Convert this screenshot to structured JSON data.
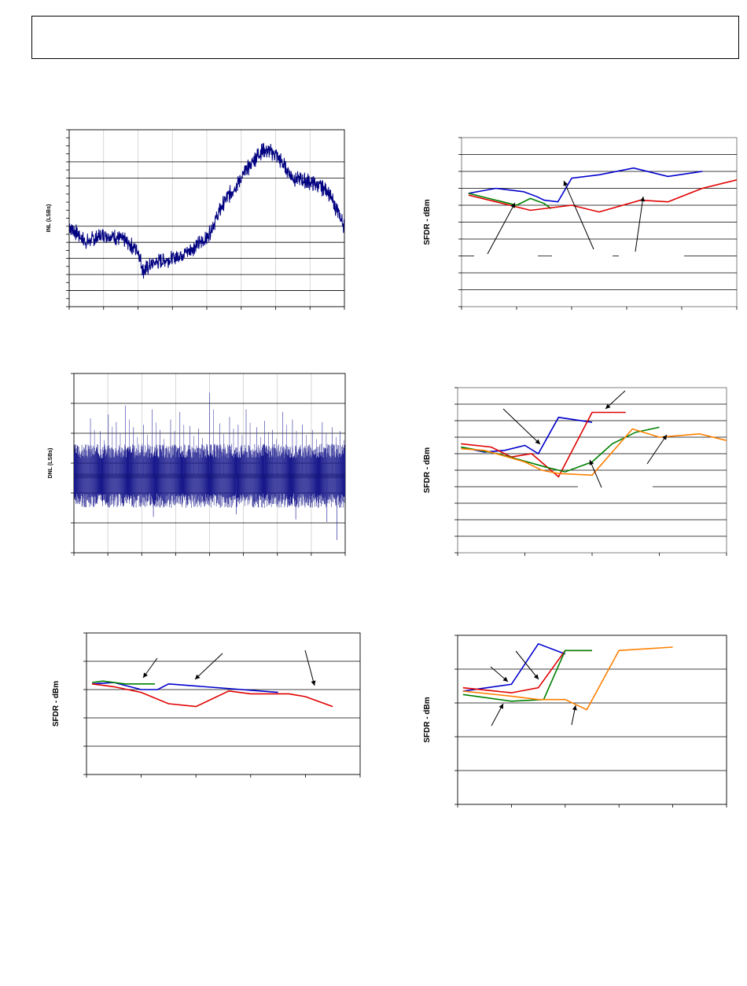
{
  "header": {
    "title": ""
  },
  "chart_data": [
    {
      "id": "inl",
      "type": "line",
      "ylabel": "INL (LSBs)",
      "xlabel": "",
      "title": "",
      "grid": true,
      "x_range": [
        0,
        4096
      ],
      "y_range": [
        -1.0,
        1.2
      ],
      "n_ydiv": 11,
      "n_xdiv": 8,
      "series": [
        {
          "color": "#000080",
          "x": [
            0,
            256,
            512,
            768,
            1024,
            1100,
            1280,
            1536,
            1792,
            2048,
            2304,
            2560,
            2816,
            2900,
            3072,
            3328,
            3584,
            3840,
            4096
          ],
          "y": [
            0.0,
            -0.2,
            -0.1,
            -0.15,
            -0.3,
            -0.55,
            -0.45,
            -0.4,
            -0.3,
            -0.15,
            0.3,
            0.6,
            0.9,
            0.95,
            0.9,
            0.6,
            0.55,
            0.45,
            0.0
          ]
        }
      ]
    },
    {
      "id": "sfdr1",
      "type": "line",
      "ylabel": "SFDR - dBm",
      "xlabel": "",
      "title": "",
      "grid": true,
      "x_range": [
        0,
        200
      ],
      "y_range": [
        0,
        100
      ],
      "n_ydiv": 10,
      "n_xdiv": 5,
      "series": [
        {
          "color": "#0000cc",
          "x": [
            5,
            25,
            45,
            55,
            60,
            70,
            80,
            100,
            125,
            150,
            175
          ],
          "y": [
            67,
            70,
            68,
            65,
            63,
            62,
            76,
            78,
            82,
            77,
            80
          ]
        },
        {
          "color": "#008000",
          "x": [
            5,
            25,
            40,
            50,
            60,
            65
          ],
          "y": [
            67,
            63,
            60,
            64,
            61,
            58
          ]
        },
        {
          "color": "#e00000",
          "x": [
            5,
            25,
            50,
            80,
            100,
            130,
            150,
            175,
            200
          ],
          "y": [
            66,
            62,
            57,
            60,
            56,
            63,
            62,
            70,
            75
          ]
        }
      ]
    },
    {
      "id": "dnl",
      "type": "bar",
      "ylabel": "DNL (LSBs)",
      "xlabel": "",
      "title": "",
      "grid": true,
      "x_range": [
        0,
        4096
      ],
      "y_range": [
        -0.6,
        0.8
      ],
      "n_ydiv": 6,
      "n_xdiv": 8,
      "band_y": [
        -0.25,
        0.25
      ],
      "spikes_x": [
        250,
        400,
        520,
        640,
        780,
        900,
        1050,
        1180,
        1300,
        1460,
        1600,
        1750,
        1880,
        2050,
        2200,
        2350,
        2480,
        2600,
        2760,
        2880,
        3000,
        3150,
        3300,
        3450,
        3600,
        3750,
        3900,
        4020
      ],
      "spikes_y": [
        0.45,
        0.35,
        0.48,
        0.42,
        0.55,
        0.38,
        0.4,
        0.52,
        0.36,
        0.44,
        0.5,
        0.39,
        0.37,
        0.65,
        0.41,
        0.46,
        0.4,
        0.52,
        0.38,
        0.43,
        0.36,
        0.5,
        0.44,
        0.4,
        0.36,
        0.42,
        0.38,
        0.35
      ],
      "neg_spikes_x": [
        1200,
        2450,
        3350,
        3820,
        3970
      ],
      "neg_spikes_y": [
        -0.32,
        -0.3,
        -0.34,
        -0.36,
        -0.5
      ]
    },
    {
      "id": "sfdr2",
      "type": "line",
      "ylabel": "SFDR - dBm",
      "xlabel": "",
      "title": "",
      "grid": true,
      "x_range": [
        0,
        400
      ],
      "y_range": [
        0,
        100
      ],
      "n_ydiv": 10,
      "n_xdiv": 4,
      "series": [
        {
          "color": "#0000cc",
          "x": [
            5,
            40,
            70,
            100,
            120,
            150,
            200
          ],
          "y": [
            64,
            61,
            62,
            65,
            60,
            82,
            79
          ]
        },
        {
          "color": "#e00000",
          "x": [
            5,
            50,
            80,
            110,
            150,
            200,
            250
          ],
          "y": [
            66,
            64,
            58,
            60,
            46,
            85,
            85
          ]
        },
        {
          "color": "#008000",
          "x": [
            5,
            60,
            130,
            160,
            200,
            230,
            265,
            300
          ],
          "y": [
            64,
            60,
            52,
            49,
            55,
            66,
            73,
            76
          ]
        },
        {
          "color": "#ff7f00",
          "x": [
            5,
            40,
            100,
            125,
            150,
            200,
            260,
            300,
            360,
            400
          ],
          "y": [
            63,
            62,
            55,
            50,
            48,
            47,
            75,
            70,
            72,
            68
          ]
        }
      ]
    },
    {
      "id": "sfdr3",
      "type": "line",
      "ylabel": "SFDR - dBm",
      "xlabel": "",
      "title": "",
      "grid": true,
      "x_range": [
        0,
        500
      ],
      "y_range": [
        0,
        100
      ],
      "n_ydiv": 5,
      "n_xdiv": 5,
      "series": [
        {
          "color": "#0000cc",
          "x": [
            10,
            50,
            100,
            130,
            150,
            350
          ],
          "y": [
            64,
            65,
            60,
            60,
            64,
            58
          ]
        },
        {
          "color": "#008000",
          "x": [
            10,
            30,
            70,
            125
          ],
          "y": [
            65,
            66,
            64,
            64
          ]
        },
        {
          "color": "#e00000",
          "x": [
            10,
            50,
            100,
            150,
            200,
            260,
            300,
            370,
            400,
            450
          ],
          "y": [
            64,
            62,
            58,
            50,
            48,
            59,
            57,
            57,
            55,
            48
          ]
        }
      ]
    },
    {
      "id": "sfdr4",
      "type": "line",
      "ylabel": "SFDR - dBm",
      "xlabel": "",
      "title": "",
      "grid": true,
      "x_range": [
        0,
        500
      ],
      "y_range": [
        0,
        100
      ],
      "n_ydiv": 5,
      "n_xdiv": 5,
      "series": [
        {
          "color": "#0000cc",
          "x": [
            10,
            100,
            150,
            200
          ],
          "y": [
            67,
            71,
            95,
            89
          ]
        },
        {
          "color": "#e00000",
          "x": [
            10,
            100,
            150,
            200,
            250
          ],
          "y": [
            69,
            66,
            69,
            91,
            91
          ]
        },
        {
          "color": "#008000",
          "x": [
            10,
            100,
            160,
            200,
            250
          ],
          "y": [
            65,
            61,
            62,
            91,
            91
          ]
        },
        {
          "color": "#ff7f00",
          "x": [
            10,
            100,
            150,
            200,
            240,
            300,
            400
          ],
          "y": [
            67,
            64,
            62,
            62,
            56,
            91,
            93
          ]
        }
      ]
    }
  ]
}
